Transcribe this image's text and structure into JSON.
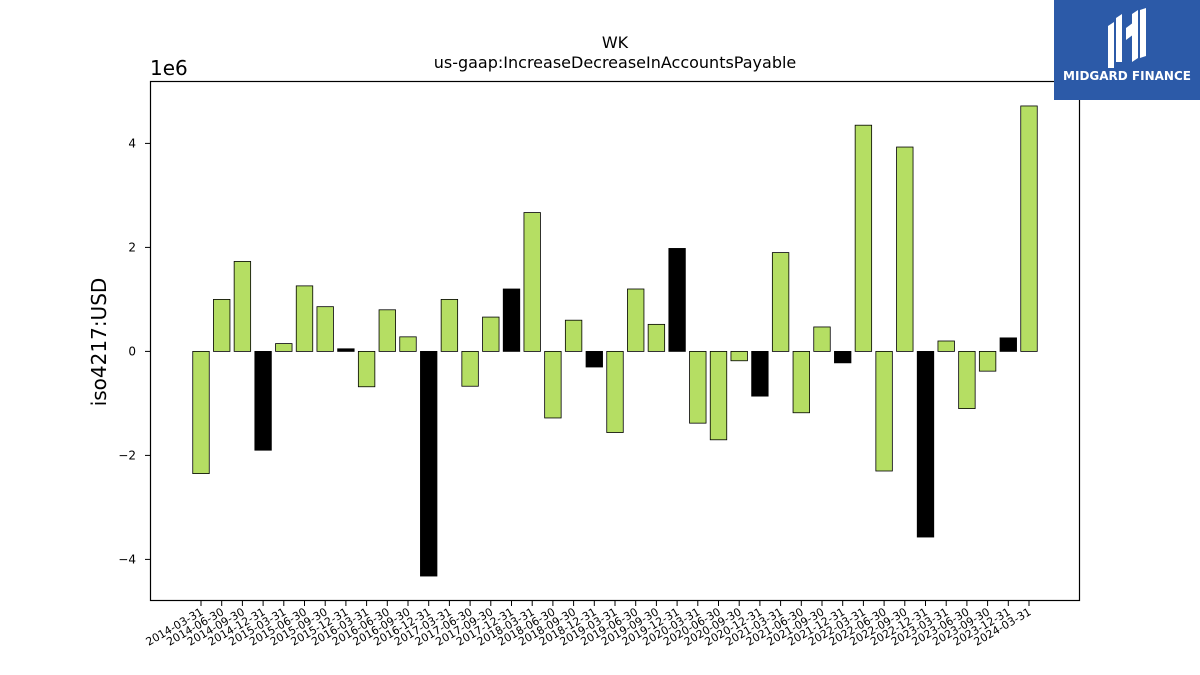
{
  "branding": {
    "logo_text": "MIDGARD FINANCE",
    "logo_bg": "#2c5aa8",
    "logo_icon": "midgard-logo-icon"
  },
  "chart_data": {
    "type": "bar",
    "title": "WK",
    "subtitle": "us-gaap:IncreaseDecreaseInAccountsPayable",
    "ylabel": "iso4217:USD",
    "xlabel": "",
    "y_multiplier": "1e6",
    "ylim": [
      -4.8,
      5.2
    ],
    "yticks": [
      -4,
      -2,
      0,
      2,
      4
    ],
    "grid": false,
    "colors": {
      "default": "#b5de63",
      "highlight": "#000000"
    },
    "categories": [
      "2014-03-31",
      "2014-06-30",
      "2014-09-30",
      "2014-12-31",
      "2015-03-31",
      "2015-06-30",
      "2015-09-30",
      "2015-12-31",
      "2016-03-31",
      "2016-06-30",
      "2016-09-30",
      "2016-12-31",
      "2017-03-31",
      "2017-06-30",
      "2017-09-30",
      "2017-12-31",
      "2018-03-31",
      "2018-06-30",
      "2018-09-30",
      "2018-12-31",
      "2019-03-31",
      "2019-06-30",
      "2019-09-30",
      "2019-12-31",
      "2020-03-31",
      "2020-06-30",
      "2020-09-30",
      "2020-12-31",
      "2021-03-31",
      "2021-06-30",
      "2021-09-30",
      "2021-12-31",
      "2022-03-31",
      "2022-06-30",
      "2022-09-30",
      "2022-12-31",
      "2023-03-31",
      "2023-06-30",
      "2023-09-30",
      "2023-12-31",
      "2024-03-31"
    ],
    "values": [
      -2.35,
      1.0,
      1.73,
      -1.9,
      0.15,
      1.26,
      0.86,
      0.05,
      -0.68,
      0.8,
      0.28,
      -4.32,
      1.0,
      -0.67,
      0.66,
      1.2,
      2.67,
      -1.28,
      0.6,
      -0.3,
      -1.56,
      1.2,
      0.52,
      1.98,
      -1.38,
      -1.7,
      -0.18,
      -0.86,
      1.9,
      -1.18,
      0.47,
      -0.22,
      4.35,
      -2.3,
      3.93,
      -3.57,
      0.2,
      -1.1,
      -0.38,
      0.26,
      4.72
    ],
    "highlight": [
      false,
      false,
      false,
      true,
      false,
      false,
      false,
      true,
      false,
      false,
      false,
      true,
      false,
      false,
      false,
      true,
      false,
      false,
      false,
      true,
      false,
      false,
      false,
      true,
      false,
      false,
      false,
      true,
      false,
      false,
      false,
      true,
      false,
      false,
      false,
      true,
      false,
      false,
      false,
      true,
      false
    ]
  }
}
